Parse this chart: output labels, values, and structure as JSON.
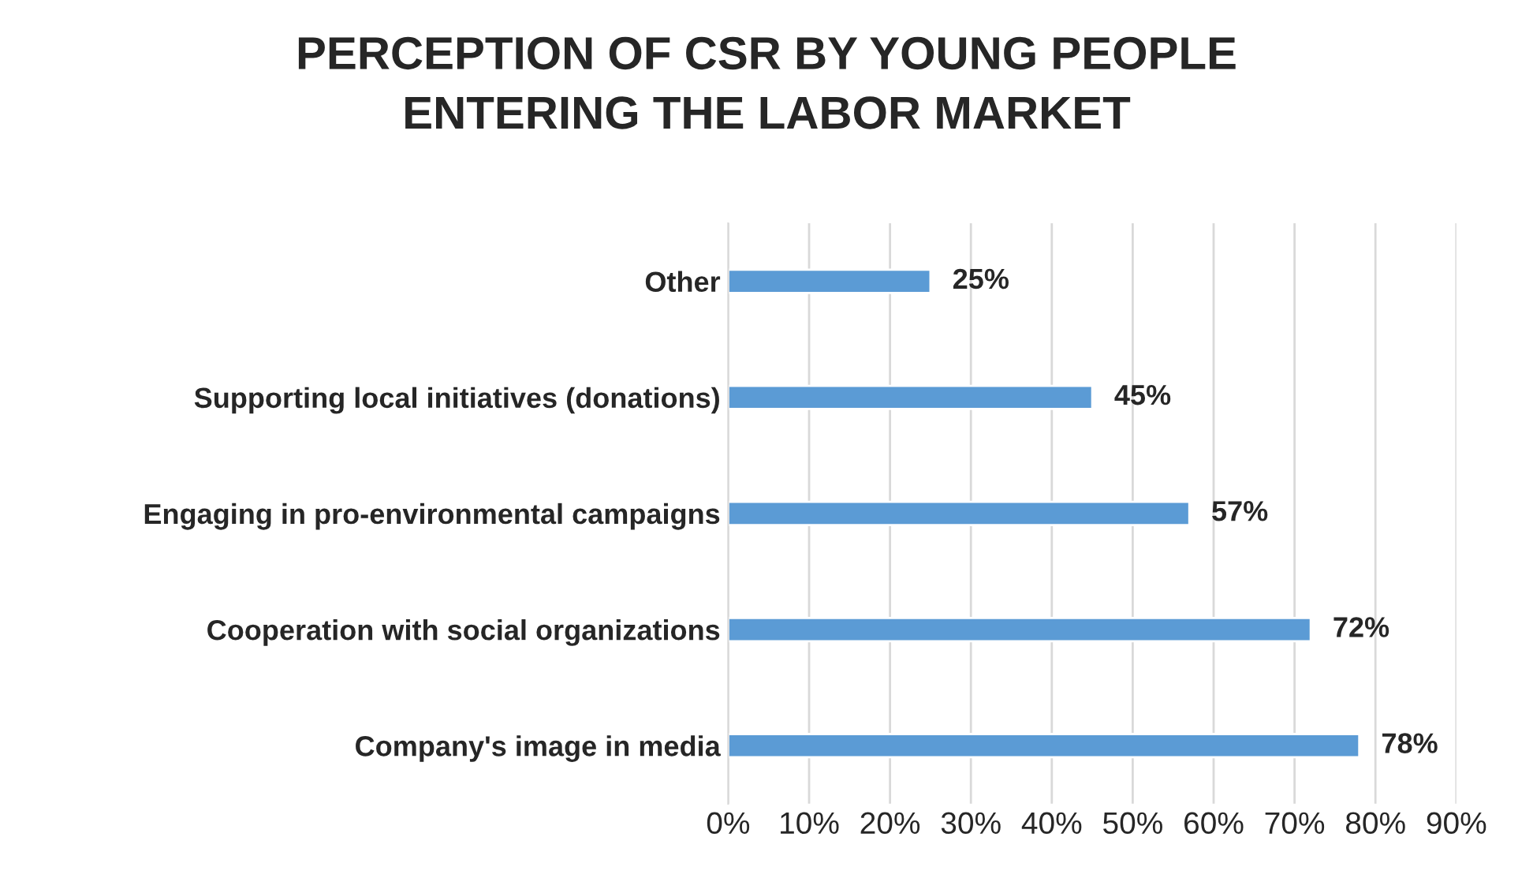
{
  "chart_data": {
    "type": "bar",
    "orientation": "horizontal",
    "title": "PERCEPTION OF CSR BY YOUNG PEOPLE\nENTERING THE LABOR MARKET",
    "categories": [
      "Other",
      "Supporting local initiatives (donations)",
      "Engaging in pro-environmental campaigns",
      "Cooperation with social organizations",
      "Company's image in media"
    ],
    "values": [
      25,
      45,
      57,
      72,
      78
    ],
    "value_labels": [
      "25%",
      "45%",
      "57%",
      "72%",
      "78%"
    ],
    "color": "#5b9bd5",
    "xlim": [
      0,
      90
    ],
    "xticks": [
      {
        "value": 0,
        "label": "0%"
      },
      {
        "value": 10,
        "label": "10%"
      },
      {
        "value": 20,
        "label": "20%"
      },
      {
        "value": 30,
        "label": "30%"
      },
      {
        "value": 40,
        "label": "40%"
      },
      {
        "value": 50,
        "label": "50%"
      },
      {
        "value": 60,
        "label": "60%"
      },
      {
        "value": 70,
        "label": "70%"
      },
      {
        "value": 80,
        "label": "80%"
      },
      {
        "value": 90,
        "label": "90%"
      }
    ],
    "grid": "x"
  }
}
